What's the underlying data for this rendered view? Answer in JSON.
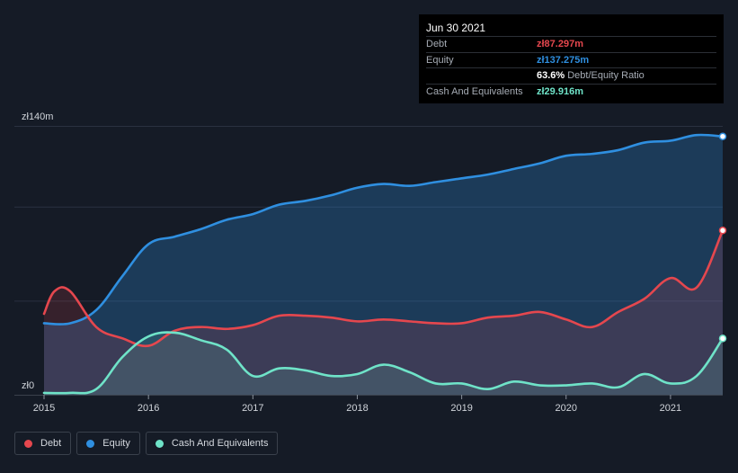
{
  "chart_data": {
    "type": "area",
    "currency": "zł",
    "y_axis": {
      "labels": [
        "zł140m",
        "zł0"
      ],
      "ylim": [
        0,
        140
      ]
    },
    "x_axis": {
      "ticks": [
        "2015",
        "2016",
        "2017",
        "2018",
        "2019",
        "2020",
        "2021"
      ],
      "xlim": [
        2015.0,
        2021.5
      ]
    },
    "grid": true,
    "legend_placement": "bottom-left",
    "series": [
      {
        "name": "Debt",
        "color": "#e5474e",
        "x": [
          2015.0,
          2015.1,
          2015.25,
          2015.5,
          2015.75,
          2016.0,
          2016.25,
          2016.5,
          2016.75,
          2017.0,
          2017.25,
          2017.5,
          2017.75,
          2018.0,
          2018.25,
          2018.5,
          2018.75,
          2019.0,
          2019.25,
          2019.5,
          2019.75,
          2020.0,
          2020.25,
          2020.5,
          2020.75,
          2021.0,
          2021.25,
          2021.5
        ],
        "values": [
          43,
          55,
          55,
          36,
          30,
          26,
          34,
          36,
          35,
          37,
          42,
          42,
          41,
          39,
          40,
          39,
          38,
          38,
          41,
          42,
          44,
          40,
          36,
          44,
          51,
          62,
          57,
          87.297
        ]
      },
      {
        "name": "Equity",
        "color": "#2f8fe0",
        "x": [
          2015.0,
          2015.25,
          2015.5,
          2015.75,
          2016.0,
          2016.25,
          2016.5,
          2016.75,
          2017.0,
          2017.25,
          2017.5,
          2017.75,
          2018.0,
          2018.25,
          2018.5,
          2018.75,
          2019.0,
          2019.25,
          2019.5,
          2019.75,
          2020.0,
          2020.25,
          2020.5,
          2020.75,
          2021.0,
          2021.25,
          2021.5
        ],
        "values": [
          38,
          38,
          45,
          63,
          80,
          84,
          88,
          93,
          96,
          101,
          103,
          106,
          110,
          112,
          111,
          113,
          115,
          117,
          120,
          123,
          127,
          128,
          130,
          134,
          135,
          138,
          137.275
        ]
      },
      {
        "name": "Cash And Equivalents",
        "color": "#6fe3c8",
        "x": [
          2015.0,
          2015.25,
          2015.5,
          2015.75,
          2016.0,
          2016.25,
          2016.5,
          2016.75,
          2017.0,
          2017.25,
          2017.5,
          2017.75,
          2018.0,
          2018.25,
          2018.5,
          2018.75,
          2019.0,
          2019.25,
          2019.5,
          2019.75,
          2020.0,
          2020.25,
          2020.5,
          2020.75,
          2021.0,
          2021.25,
          2021.5
        ],
        "values": [
          1,
          1,
          3,
          20,
          31,
          33,
          29,
          24,
          10,
          14,
          13,
          10,
          11,
          16,
          12,
          6,
          6,
          3,
          7,
          5,
          5,
          6,
          4,
          11,
          6,
          10,
          29.916
        ]
      }
    ]
  },
  "tooltip": {
    "date": "Jun 30 2021",
    "rows": [
      {
        "label": "Debt",
        "value": "zł87.297m",
        "color": "#e5474e"
      },
      {
        "label": "Equity",
        "value": "zł137.275m",
        "color": "#2f8fe0"
      },
      {
        "label": "",
        "value": "63.6%",
        "unit": "Debt/Equity Ratio",
        "color": "#ffffff"
      },
      {
        "label": "Cash And Equivalents",
        "value": "zł29.916m",
        "color": "#6fe3c8"
      }
    ]
  },
  "legend": [
    {
      "label": "Debt",
      "color": "#e5474e"
    },
    {
      "label": "Equity",
      "color": "#2f8fe0"
    },
    {
      "label": "Cash And Equivalents",
      "color": "#6fe3c8"
    }
  ]
}
